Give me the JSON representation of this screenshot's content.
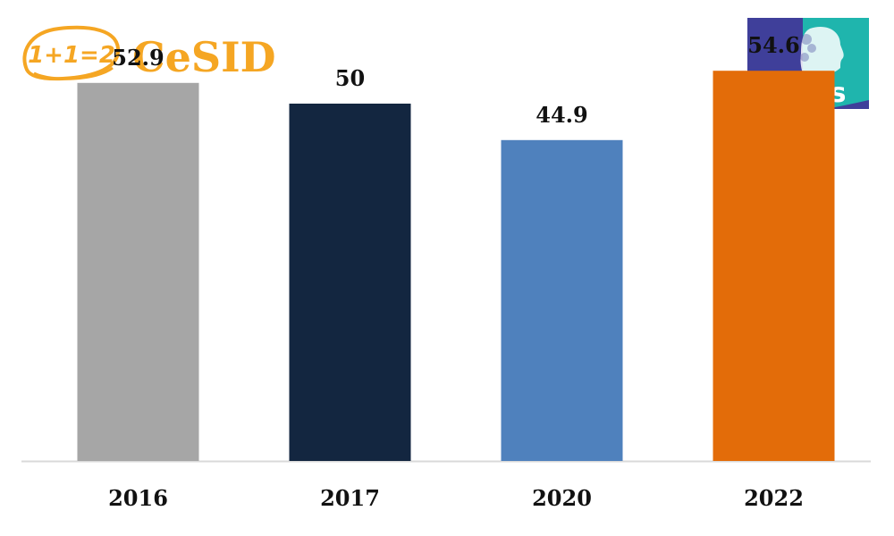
{
  "logos": {
    "cesid": {
      "badge_text": "1+1=2",
      "name": "CeSID",
      "color": "#f5a623"
    },
    "ipsos": {
      "name": "Ipsos",
      "color_left": "#3f3f9a",
      "color_right": "#1fb5ad"
    }
  },
  "chart_data": {
    "type": "bar",
    "categories": [
      "2016",
      "2017",
      "2020",
      "2022"
    ],
    "values": [
      52.9,
      50,
      44.9,
      54.6
    ],
    "value_labels": [
      "52.9",
      "50",
      "44.9",
      "54.6"
    ],
    "colors": [
      "#a6a6a6",
      "#132640",
      "#4f81bd",
      "#e36c09"
    ],
    "ylim": [
      0,
      60
    ],
    "grid": false,
    "legend": "none",
    "axis_color": "#d9d9d9"
  }
}
